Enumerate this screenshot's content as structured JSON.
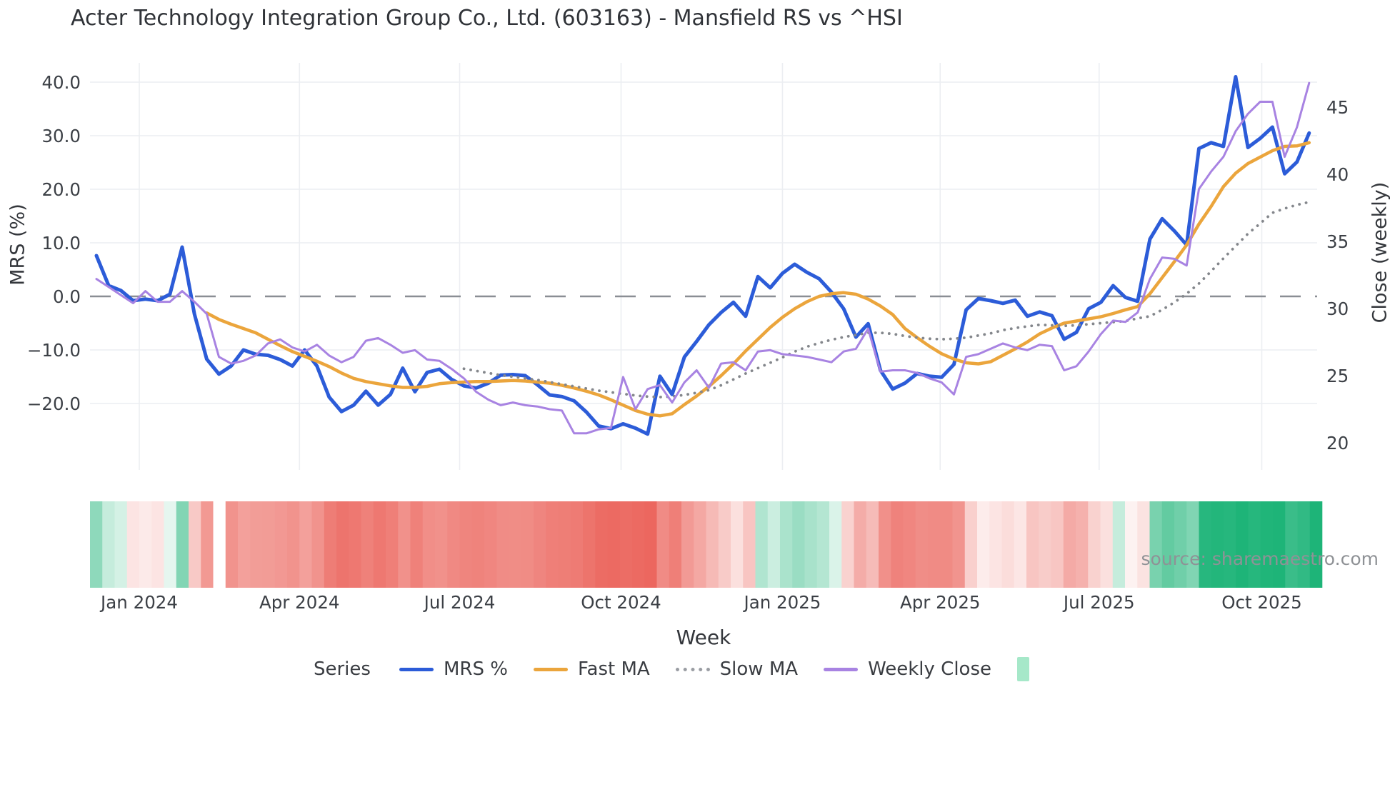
{
  "title": "Acter Technology Integration Group Co., Ltd. (603163) - Mansfield RS vs ^HSI",
  "source_note": "source: sharemaestro.com",
  "axes": {
    "y_left": {
      "label": "MRS (%)",
      "tick_labels": [
        "40.0",
        "30.0",
        "20.0",
        "10.0",
        "0.0",
        "−10.0",
        "−20.0"
      ],
      "tick_values": [
        40,
        30,
        20,
        10,
        0,
        -10,
        -20
      ]
    },
    "y_right": {
      "label": "Close (weekly)",
      "tick_labels": [
        "45",
        "40",
        "35",
        "30",
        "25",
        "20"
      ],
      "tick_values": [
        45,
        40,
        35,
        30,
        25,
        20
      ]
    },
    "x": {
      "label": "Week",
      "tick_labels": [
        "Jan 2024",
        "Apr 2024",
        "Jul 2024",
        "Oct 2024",
        "Jan 2025",
        "Apr 2025",
        "Jul 2025",
        "Oct 2025"
      ],
      "tick_weeks": [
        4,
        17,
        30,
        43.1,
        56.2,
        69,
        81.9,
        95.1
      ]
    }
  },
  "legend": {
    "title": "Series",
    "items": [
      {
        "label": "MRS %",
        "color": "#2c5cd8",
        "style": "solid"
      },
      {
        "label": "Fast MA",
        "color": "#eba53c",
        "style": "solid"
      },
      {
        "label": "Slow MA",
        "color": "#9a9da3",
        "style": "dotted"
      },
      {
        "label": "Weekly Close",
        "color": "#a883e2",
        "style": "solid"
      }
    ],
    "heatmap_swatch_color": "#a6e8c9"
  },
  "colors": {
    "grid": "#eceef2",
    "zero_line": "#8a8e94",
    "tick_text": "#3c4046",
    "heat_positive": "#1eb478",
    "heat_negative": "#ea5b52"
  },
  "chart_data": {
    "type": "line",
    "x_unit": "week",
    "n_weeks": 100,
    "x_range_labels": [
      "Dec 2023",
      "Nov 2025"
    ],
    "ylim_left": [
      -28,
      43
    ],
    "ylim_right": [
      19,
      47.5
    ],
    "zero_dashed_line_left_value": 0,
    "series": [
      {
        "name": "MRS %",
        "axis": "left",
        "color": "#2c5cd8",
        "width": 5,
        "dash": null,
        "values": [
          7.6,
          2.0,
          1.1,
          -0.8,
          -0.5,
          -0.8,
          0.4,
          9.2,
          -3.3,
          -11.7,
          -14.5,
          -13.0,
          -10.0,
          -10.8,
          -11.0,
          -11.8,
          -13.0,
          -10.0,
          -13.0,
          -18.8,
          -21.5,
          -20.3,
          -17.7,
          -20.3,
          -18.3,
          -13.4,
          -17.8,
          -14.2,
          -13.6,
          -15.5,
          -16.7,
          -17.1,
          -16.2,
          -14.7,
          -14.6,
          -14.8,
          -16.5,
          -18.4,
          -18.7,
          -19.5,
          -21.6,
          -24.2,
          -24.7,
          -23.8,
          -24.6,
          -25.7,
          -14.9,
          -18.3,
          -11.3,
          -8.4,
          -5.3,
          -3.0,
          -1.1,
          -3.7,
          3.7,
          1.6,
          4.3,
          6.0,
          4.5,
          3.3,
          0.8,
          -2.3,
          -7.6,
          -5.1,
          -13.8,
          -17.3,
          -16.2,
          -14.4,
          -14.9,
          -15.1,
          -12.7,
          -2.5,
          -0.4,
          -0.8,
          -1.3,
          -0.7,
          -3.7,
          -2.9,
          -3.6,
          -8.0,
          -6.7,
          -2.3,
          -1.1,
          2.0,
          -0.2,
          -0.9,
          10.7,
          14.5,
          12.2,
          9.6,
          27.6,
          28.7,
          28.0,
          41.0,
          27.8,
          29.5,
          31.6,
          22.9,
          25.1,
          30.5
        ]
      },
      {
        "name": "Fast MA",
        "axis": "left",
        "color": "#eba53c",
        "width": 4.5,
        "dash": null,
        "values": [
          null,
          null,
          null,
          null,
          null,
          null,
          null,
          null,
          null,
          -3.1,
          -4.3,
          -5.2,
          -6.0,
          -6.8,
          -8.0,
          -9.2,
          -10.3,
          -11.2,
          -12.1,
          -13.1,
          -14.3,
          -15.3,
          -15.9,
          -16.3,
          -16.7,
          -17.0,
          -17.0,
          -16.8,
          -16.3,
          -16.1,
          -16.0,
          -15.9,
          -15.9,
          -15.8,
          -15.7,
          -15.8,
          -16.0,
          -16.2,
          -16.6,
          -17.1,
          -17.7,
          -18.4,
          -19.3,
          -20.3,
          -21.3,
          -22.0,
          -22.3,
          -21.9,
          -20.2,
          -18.6,
          -16.8,
          -14.8,
          -12.6,
          -10.2,
          -8.0,
          -5.8,
          -3.9,
          -2.3,
          -1.0,
          0.0,
          0.5,
          0.7,
          0.4,
          -0.5,
          -1.8,
          -3.4,
          -6.0,
          -7.7,
          -9.3,
          -10.7,
          -11.7,
          -12.4,
          -12.6,
          -12.2,
          -11.0,
          -9.8,
          -8.5,
          -7.0,
          -5.9,
          -5.0,
          -4.6,
          -4.2,
          -3.8,
          -3.2,
          -2.5,
          -1.9,
          0.5,
          3.5,
          6.5,
          9.6,
          13.5,
          16.8,
          20.5,
          23.0,
          24.8,
          26.0,
          27.2,
          28.0,
          28.1,
          28.7
        ]
      },
      {
        "name": "Slow MA",
        "axis": "left",
        "color": "#84878c",
        "width": 3.8,
        "dash": "dotted",
        "values": [
          null,
          null,
          null,
          null,
          null,
          null,
          null,
          null,
          null,
          null,
          null,
          null,
          null,
          null,
          null,
          null,
          null,
          null,
          null,
          null,
          null,
          null,
          null,
          null,
          null,
          null,
          null,
          null,
          null,
          null,
          -13.5,
          -13.9,
          -14.3,
          -14.7,
          -15.0,
          -15.3,
          -15.6,
          -16.0,
          -16.4,
          -16.8,
          -17.2,
          -17.6,
          -17.9,
          -18.2,
          -18.5,
          -18.7,
          -18.8,
          -18.7,
          -18.4,
          -18.0,
          -17.5,
          -16.6,
          -15.5,
          -14.4,
          -13.4,
          -12.4,
          -11.4,
          -10.3,
          -9.4,
          -8.7,
          -8.1,
          -7.6,
          -7.2,
          -6.8,
          -6.8,
          -7.0,
          -7.4,
          -7.7,
          -7.9,
          -8.0,
          -7.9,
          -7.7,
          -7.3,
          -6.9,
          -6.3,
          -5.9,
          -5.6,
          -5.3,
          -5.4,
          -5.5,
          -5.4,
          -5.2,
          -5.0,
          -4.8,
          -4.6,
          -4.1,
          -3.7,
          -2.5,
          -1.1,
          0.5,
          2.4,
          4.7,
          7.1,
          9.4,
          11.7,
          13.6,
          15.6,
          16.4,
          17.1,
          17.6
        ]
      },
      {
        "name": "Weekly Close",
        "axis": "right",
        "color": "#a883e2",
        "width": 3,
        "dash": null,
        "values": [
          32.2,
          31.6,
          31.0,
          30.4,
          31.3,
          30.5,
          30.5,
          31.3,
          30.5,
          29.6,
          26.4,
          25.9,
          26.1,
          26.5,
          27.4,
          27.7,
          27.1,
          26.8,
          27.3,
          26.5,
          26.0,
          26.4,
          27.6,
          27.8,
          27.3,
          26.7,
          26.9,
          26.2,
          26.1,
          25.5,
          24.8,
          23.8,
          23.2,
          22.8,
          23.0,
          22.8,
          22.7,
          22.5,
          22.4,
          20.7,
          20.7,
          21.0,
          21.1,
          24.9,
          22.5,
          24.0,
          24.3,
          23.0,
          24.5,
          25.4,
          24.1,
          25.9,
          26.0,
          25.4,
          26.8,
          26.9,
          26.6,
          26.5,
          26.4,
          26.2,
          26.0,
          26.8,
          27.0,
          28.5,
          25.3,
          25.4,
          25.4,
          25.2,
          24.8,
          24.5,
          23.6,
          26.4,
          26.6,
          27.0,
          27.4,
          27.1,
          26.9,
          27.3,
          27.2,
          25.4,
          25.7,
          26.8,
          28.1,
          29.1,
          29.0,
          29.7,
          32.2,
          33.8,
          33.7,
          33.2,
          38.9,
          40.2,
          41.3,
          43.2,
          44.5,
          45.4,
          45.4,
          41.3,
          43.5,
          46.8
        ]
      }
    ],
    "heatmap": {
      "type": "heatmap",
      "description": "weekly color strip derived from MRS % sign and magnitude (green positive, red negative)",
      "source_series": "MRS %",
      "gap_weeks": [
        10
      ],
      "positive_color": "#1eb478",
      "negative_color": "#ea5b52"
    }
  }
}
